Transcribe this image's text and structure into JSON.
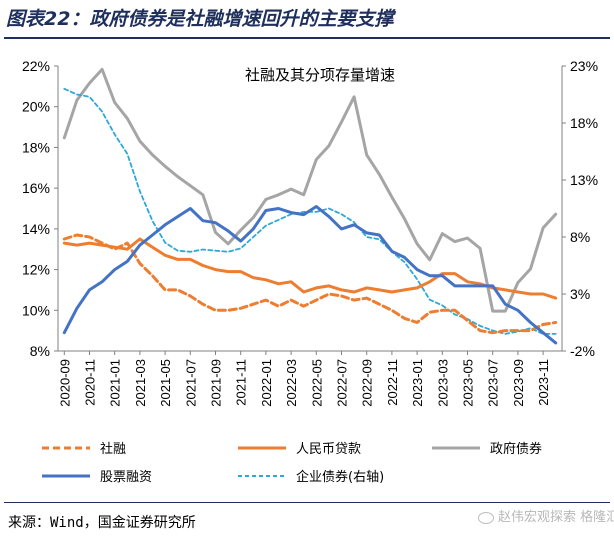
{
  "figure": {
    "title": "图表22：政府债券是社融增速回升的主要支撑",
    "source": "来源：Wind，国金证券研究所",
    "watermark": "赵伟宏观探索 格隆汇"
  },
  "colors": {
    "title": "#1f2f5c",
    "shehui": "#ed7d31",
    "rmb_loans": "#ed7d31",
    "gov_bonds": "#a5a5a5",
    "stocks": "#4472c4",
    "corp_bonds": "#2fa8d6"
  },
  "chart_data": {
    "type": "line",
    "title": "社融及其分项存量增速",
    "x": [
      "2020-09",
      "2020-10",
      "2020-11",
      "2020-12",
      "2021-01",
      "2021-02",
      "2021-03",
      "2021-04",
      "2021-05",
      "2021-06",
      "2021-07",
      "2021-08",
      "2021-09",
      "2021-10",
      "2021-11",
      "2021-12",
      "2022-01",
      "2022-02",
      "2022-03",
      "2022-04",
      "2022-05",
      "2022-06",
      "2022-07",
      "2022-08",
      "2022-09",
      "2022-10",
      "2022-11",
      "2022-12",
      "2023-01",
      "2023-02",
      "2023-03",
      "2023-04",
      "2023-05",
      "2023-06",
      "2023-07",
      "2023-08",
      "2023-09",
      "2023-10",
      "2023-11",
      "2023-12"
    ],
    "x_tick_labels": [
      "2020-09",
      "2020-11",
      "2021-01",
      "2021-03",
      "2021-05",
      "2021-07",
      "2021-09",
      "2021-11",
      "2022-01",
      "2022-03",
      "2022-05",
      "2022-07",
      "2022-09",
      "2022-11",
      "2023-01",
      "2023-03",
      "2023-05",
      "2023-07",
      "2023-09",
      "2023-11"
    ],
    "y_left": {
      "min": 8,
      "max": 22,
      "ticks": [
        "8%",
        "10%",
        "12%",
        "14%",
        "16%",
        "18%",
        "20%",
        "22%"
      ]
    },
    "y_right": {
      "min": -2,
      "max": 23,
      "ticks": [
        "-2%",
        "3%",
        "8%",
        "13%",
        "18%",
        "23%"
      ]
    },
    "series": [
      {
        "name": "社融",
        "axis": "left",
        "style": "dashed",
        "color": "#ed7d31",
        "values": [
          13.5,
          13.7,
          13.6,
          13.3,
          13.0,
          13.3,
          12.3,
          11.7,
          11.0,
          11.0,
          10.7,
          10.3,
          10.0,
          10.0,
          10.1,
          10.3,
          10.5,
          10.2,
          10.5,
          10.2,
          10.5,
          10.8,
          10.7,
          10.5,
          10.6,
          10.3,
          10.0,
          9.6,
          9.4,
          9.9,
          10.0,
          10.0,
          9.5,
          9.0,
          8.9,
          9.0,
          9.0,
          9.0,
          9.3,
          9.4
        ]
      },
      {
        "name": "人民币贷款",
        "axis": "left",
        "style": "solid",
        "color": "#ed7d31",
        "values": [
          13.3,
          13.2,
          13.3,
          13.2,
          13.1,
          13.0,
          13.5,
          13.1,
          12.7,
          12.5,
          12.5,
          12.2,
          12.0,
          11.9,
          11.9,
          11.6,
          11.5,
          11.3,
          11.4,
          10.9,
          11.1,
          11.2,
          11.0,
          10.9,
          11.1,
          11.0,
          10.9,
          11.0,
          11.1,
          11.4,
          11.8,
          11.8,
          11.4,
          11.3,
          11.1,
          11.0,
          10.9,
          10.8,
          10.8,
          10.6
        ]
      },
      {
        "name": "政府债券",
        "axis": "right",
        "style": "solid",
        "color": "#a5a5a5",
        "values": [
          16.7,
          20.0,
          21.5,
          22.7,
          19.8,
          18.4,
          16.4,
          15.2,
          14.2,
          13.3,
          12.5,
          11.7,
          8.4,
          7.4,
          8.6,
          9.7,
          11.3,
          11.7,
          12.2,
          11.7,
          14.8,
          16.0,
          18.1,
          20.3,
          15.2,
          13.5,
          11.5,
          9.6,
          7.4,
          6.0,
          8.3,
          7.6,
          7.9,
          7.0,
          1.5,
          1.5,
          4.0,
          5.2,
          8.8,
          10.0
        ]
      },
      {
        "name": "股票融资",
        "axis": "left",
        "style": "solid",
        "color": "#4472c4",
        "values": [
          8.9,
          10.1,
          11.0,
          11.4,
          12.0,
          12.4,
          13.2,
          13.7,
          14.2,
          14.6,
          15.0,
          14.4,
          14.3,
          13.9,
          13.4,
          14.0,
          14.9,
          15.0,
          14.8,
          14.7,
          15.1,
          14.6,
          14.0,
          14.2,
          13.8,
          13.7,
          12.9,
          12.6,
          12.0,
          11.7,
          11.7,
          11.2,
          11.2,
          11.2,
          11.2,
          10.3,
          10.0,
          9.4,
          8.9,
          8.4
        ]
      },
      {
        "name": "企业债券(右轴)",
        "axis": "right",
        "style": "dashed",
        "color": "#2fa8d6",
        "values": [
          21.0,
          20.5,
          20.3,
          19.0,
          17.0,
          15.3,
          12.0,
          9.4,
          7.5,
          6.8,
          6.7,
          6.9,
          6.8,
          6.7,
          7.0,
          8.0,
          9.0,
          9.5,
          10.0,
          10.2,
          10.2,
          10.5,
          10.0,
          9.3,
          8.0,
          7.8,
          6.7,
          5.8,
          4.3,
          2.5,
          2.0,
          1.2,
          0.8,
          0.2,
          -0.2,
          -0.5,
          -0.3,
          0.0,
          -0.5,
          -0.5
        ]
      }
    ],
    "legend": {
      "position": "bottom",
      "order": [
        "社融",
        "人民币贷款",
        "政府债券",
        "股票融资",
        "企业债券(右轴)"
      ]
    },
    "grid": false
  }
}
